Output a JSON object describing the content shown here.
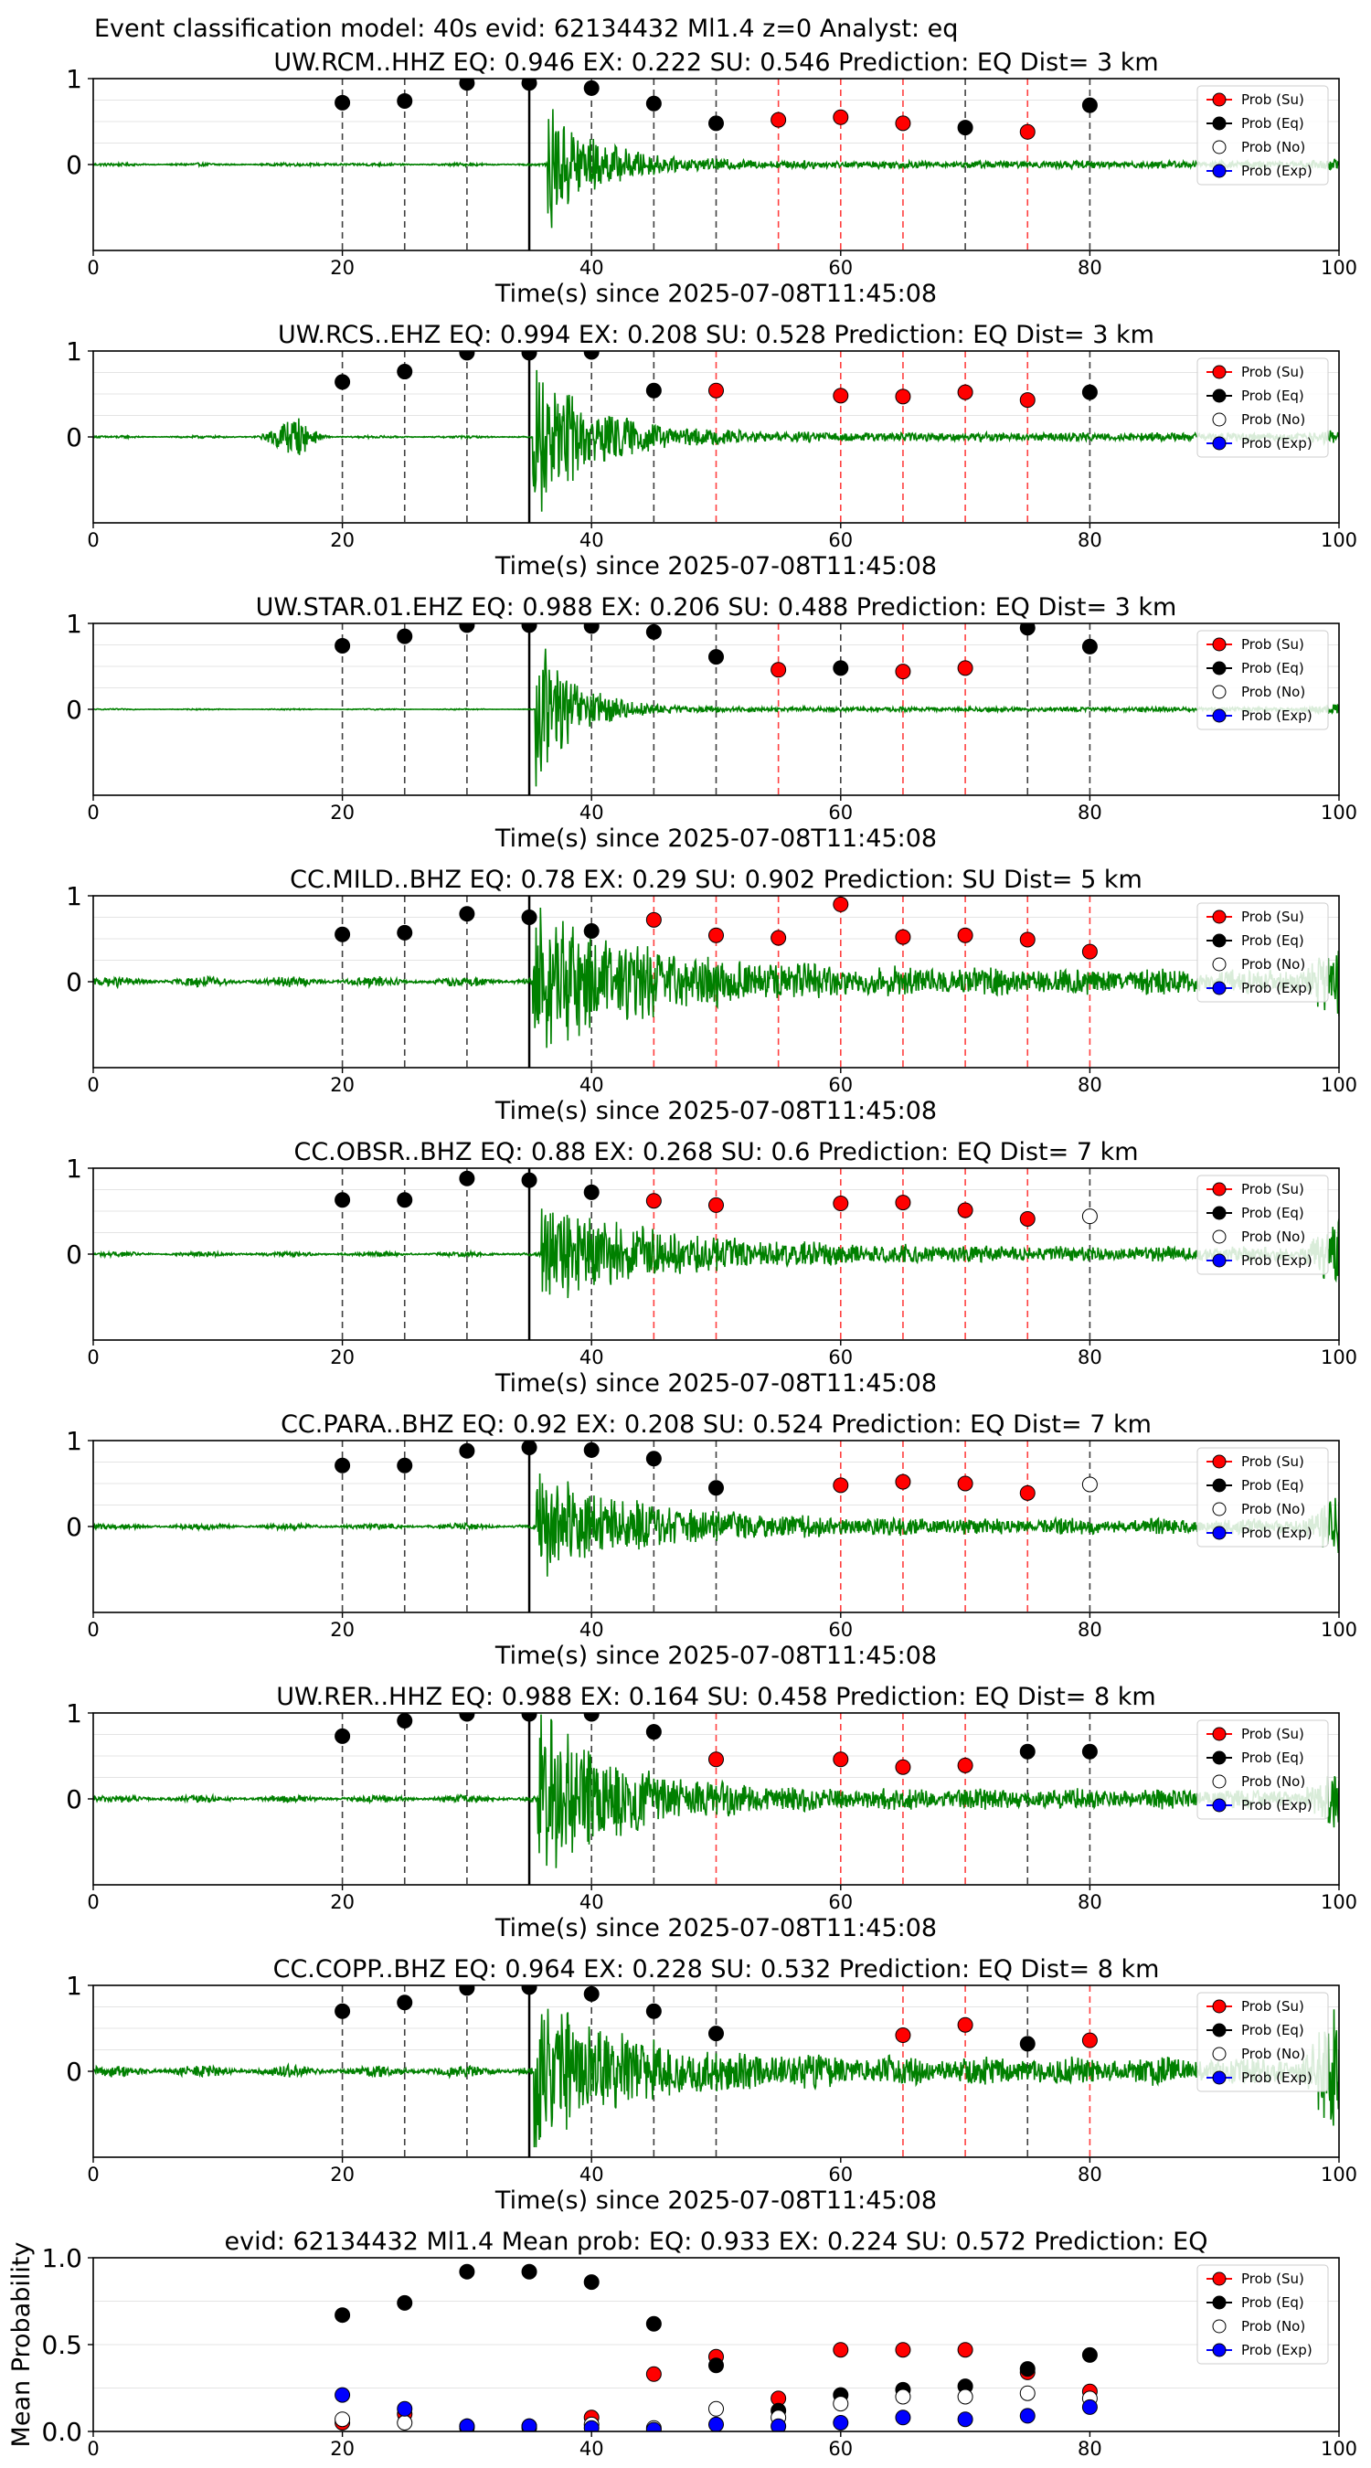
{
  "figure": {
    "title": "Event classification model: 40s evid: 62134432 Ml1.4 z=0 Analyst: eq"
  },
  "legend_labels": [
    "Prob (Su)",
    "Prob (Eq)",
    "Prob (No)",
    "Prob (Exp)"
  ],
  "colors": {
    "su": "#ff0000",
    "eq": "#000000",
    "no": "#ffffff",
    "exp": "#0000ff",
    "trace": "#008000",
    "vline_eq": "#000000",
    "vline_su": "#ff0000"
  },
  "chart_data": [
    {
      "type": "line",
      "title": "UW.RCM..HHZ   EQ: 0.946  EX: 0.222  SU: 0.546   Prediction: EQ    Dist= 3 km",
      "xlabel": "Time(s) since 2025-07-08T11:45:08",
      "xlim": [
        0,
        100
      ],
      "ylim": [
        -1,
        1
      ],
      "xticks": [
        0,
        20,
        40,
        60,
        80,
        100
      ],
      "yticks": [
        0,
        1
      ],
      "pick_time": 35,
      "points": [
        {
          "x": 20,
          "y": 0.72,
          "c": "eq"
        },
        {
          "x": 25,
          "y": 0.74,
          "c": "eq"
        },
        {
          "x": 30,
          "y": 0.95,
          "c": "eq"
        },
        {
          "x": 35,
          "y": 0.95,
          "c": "eq"
        },
        {
          "x": 40,
          "y": 0.89,
          "c": "eq"
        },
        {
          "x": 45,
          "y": 0.71,
          "c": "eq"
        },
        {
          "x": 50,
          "y": 0.48,
          "c": "eq"
        },
        {
          "x": 55,
          "y": 0.52,
          "c": "su"
        },
        {
          "x": 60,
          "y": 0.55,
          "c": "su"
        },
        {
          "x": 65,
          "y": 0.48,
          "c": "su"
        },
        {
          "x": 70,
          "y": 0.43,
          "c": "eq"
        },
        {
          "x": 75,
          "y": 0.38,
          "c": "su"
        },
        {
          "x": 80,
          "y": 0.69,
          "c": "eq"
        }
      ],
      "waveform": {
        "noise": 0.012,
        "pre_time": 19,
        "pre_amp": 0.01,
        "arrival": 36.5,
        "peak_amp": 0.75,
        "decay": 4,
        "coda_amp": 0.03,
        "end_amp": 0.04
      }
    },
    {
      "type": "line",
      "title": "UW.RCS..EHZ   EQ: 0.994  EX: 0.208  SU: 0.528   Prediction: EQ    Dist= 3 km",
      "xlabel": "Time(s) since 2025-07-08T11:45:08",
      "xlim": [
        0,
        100
      ],
      "ylim": [
        -1,
        1
      ],
      "xticks": [
        0,
        20,
        40,
        60,
        80,
        100
      ],
      "yticks": [
        0,
        1
      ],
      "pick_time": 35,
      "points": [
        {
          "x": 20,
          "y": 0.64,
          "c": "eq"
        },
        {
          "x": 25,
          "y": 0.76,
          "c": "eq"
        },
        {
          "x": 30,
          "y": 0.98,
          "c": "eq"
        },
        {
          "x": 35,
          "y": 0.98,
          "c": "eq"
        },
        {
          "x": 40,
          "y": 0.99,
          "c": "eq"
        },
        {
          "x": 45,
          "y": 0.54,
          "c": "eq"
        },
        {
          "x": 50,
          "y": 0.54,
          "c": "su"
        },
        {
          "x": 60,
          "y": 0.48,
          "c": "su"
        },
        {
          "x": 65,
          "y": 0.47,
          "c": "su"
        },
        {
          "x": 70,
          "y": 0.52,
          "c": "su"
        },
        {
          "x": 75,
          "y": 0.43,
          "c": "su"
        },
        {
          "x": 80,
          "y": 0.52,
          "c": "eq"
        }
      ],
      "waveform": {
        "noise": 0.01,
        "pre_time": 16,
        "pre_amp": 0.25,
        "arrival": 35.3,
        "peak_amp": 1.0,
        "decay": 4.5,
        "coda_amp": 0.04,
        "end_amp": 0.04
      }
    },
    {
      "type": "line",
      "title": "UW.STAR.01.EHZ   EQ: 0.988  EX: 0.206  SU: 0.488   Prediction: EQ    Dist= 3 km",
      "xlabel": "Time(s) since 2025-07-08T11:45:08",
      "xlim": [
        0,
        100
      ],
      "ylim": [
        -1,
        1
      ],
      "xticks": [
        0,
        20,
        40,
        60,
        80,
        100
      ],
      "yticks": [
        0,
        1
      ],
      "pick_time": 35,
      "points": [
        {
          "x": 20,
          "y": 0.74,
          "c": "eq"
        },
        {
          "x": 25,
          "y": 0.85,
          "c": "eq"
        },
        {
          "x": 30,
          "y": 0.98,
          "c": "eq"
        },
        {
          "x": 35,
          "y": 0.98,
          "c": "eq"
        },
        {
          "x": 40,
          "y": 0.97,
          "c": "eq"
        },
        {
          "x": 45,
          "y": 0.9,
          "c": "eq"
        },
        {
          "x": 50,
          "y": 0.61,
          "c": "eq"
        },
        {
          "x": 55,
          "y": 0.46,
          "c": "su"
        },
        {
          "x": 60,
          "y": 0.48,
          "c": "eq"
        },
        {
          "x": 65,
          "y": 0.44,
          "c": "su"
        },
        {
          "x": 70,
          "y": 0.48,
          "c": "su"
        },
        {
          "x": 75,
          "y": 0.95,
          "c": "eq"
        },
        {
          "x": 80,
          "y": 0.73,
          "c": "eq"
        }
      ],
      "waveform": {
        "noise": 0.005,
        "pre_time": 0,
        "pre_amp": 0,
        "arrival": 35.5,
        "peak_amp": 1.0,
        "decay": 3,
        "coda_amp": 0.02,
        "end_amp": 0.05
      }
    },
    {
      "type": "line",
      "title": "CC.MILD..BHZ   EQ: 0.78  EX: 0.29  SU: 0.902   Prediction: SU    Dist= 5 km",
      "xlabel": "Time(s) since 2025-07-08T11:45:08",
      "xlim": [
        0,
        100
      ],
      "ylim": [
        -1,
        1
      ],
      "xticks": [
        0,
        20,
        40,
        60,
        80,
        100
      ],
      "yticks": [
        0,
        1
      ],
      "pick_time": 35,
      "points": [
        {
          "x": 20,
          "y": 0.55,
          "c": "eq"
        },
        {
          "x": 25,
          "y": 0.57,
          "c": "eq"
        },
        {
          "x": 30,
          "y": 0.79,
          "c": "eq"
        },
        {
          "x": 35,
          "y": 0.75,
          "c": "eq"
        },
        {
          "x": 40,
          "y": 0.59,
          "c": "eq"
        },
        {
          "x": 45,
          "y": 0.72,
          "c": "su"
        },
        {
          "x": 50,
          "y": 0.54,
          "c": "su"
        },
        {
          "x": 55,
          "y": 0.51,
          "c": "su"
        },
        {
          "x": 60,
          "y": 0.9,
          "c": "su"
        },
        {
          "x": 65,
          "y": 0.52,
          "c": "su"
        },
        {
          "x": 70,
          "y": 0.54,
          "c": "su"
        },
        {
          "x": 75,
          "y": 0.49,
          "c": "su"
        },
        {
          "x": 80,
          "y": 0.35,
          "c": "su"
        }
      ],
      "waveform": {
        "noise": 0.04,
        "pre_time": 0,
        "pre_amp": 0,
        "arrival": 35.3,
        "peak_amp": 0.8,
        "decay": 9,
        "coda_amp": 0.1,
        "end_amp": 0.35
      }
    },
    {
      "type": "line",
      "title": "CC.OBSR..BHZ   EQ: 0.88  EX: 0.268  SU: 0.6   Prediction: EQ    Dist= 7 km",
      "xlabel": "Time(s) since 2025-07-08T11:45:08",
      "xlim": [
        0,
        100
      ],
      "ylim": [
        -1,
        1
      ],
      "xticks": [
        0,
        20,
        40,
        60,
        80,
        100
      ],
      "yticks": [
        0,
        1
      ],
      "pick_time": 35,
      "points": [
        {
          "x": 20,
          "y": 0.63,
          "c": "eq"
        },
        {
          "x": 25,
          "y": 0.63,
          "c": "eq"
        },
        {
          "x": 30,
          "y": 0.88,
          "c": "eq"
        },
        {
          "x": 35,
          "y": 0.86,
          "c": "eq"
        },
        {
          "x": 40,
          "y": 0.72,
          "c": "eq"
        },
        {
          "x": 45,
          "y": 0.62,
          "c": "su"
        },
        {
          "x": 50,
          "y": 0.57,
          "c": "su"
        },
        {
          "x": 60,
          "y": 0.59,
          "c": "su"
        },
        {
          "x": 65,
          "y": 0.6,
          "c": "su"
        },
        {
          "x": 70,
          "y": 0.51,
          "c": "su"
        },
        {
          "x": 75,
          "y": 0.41,
          "c": "su"
        },
        {
          "x": 80,
          "y": 0.44,
          "c": "no"
        }
      ],
      "waveform": {
        "noise": 0.02,
        "pre_time": 0,
        "pre_amp": 0,
        "arrival": 36,
        "peak_amp": 0.55,
        "decay": 10,
        "coda_amp": 0.06,
        "end_amp": 0.35
      }
    },
    {
      "type": "line",
      "title": "CC.PARA..BHZ   EQ: 0.92  EX: 0.208  SU: 0.524   Prediction: EQ    Dist= 7 km",
      "xlabel": "Time(s) since 2025-07-08T11:45:08",
      "xlim": [
        0,
        100
      ],
      "ylim": [
        -1,
        1
      ],
      "xticks": [
        0,
        20,
        40,
        60,
        80,
        100
      ],
      "yticks": [
        0,
        1
      ],
      "pick_time": 35,
      "points": [
        {
          "x": 20,
          "y": 0.71,
          "c": "eq"
        },
        {
          "x": 25,
          "y": 0.71,
          "c": "eq"
        },
        {
          "x": 30,
          "y": 0.88,
          "c": "eq"
        },
        {
          "x": 35,
          "y": 0.92,
          "c": "eq"
        },
        {
          "x": 40,
          "y": 0.89,
          "c": "eq"
        },
        {
          "x": 45,
          "y": 0.79,
          "c": "eq"
        },
        {
          "x": 50,
          "y": 0.45,
          "c": "eq"
        },
        {
          "x": 60,
          "y": 0.48,
          "c": "su"
        },
        {
          "x": 65,
          "y": 0.52,
          "c": "su"
        },
        {
          "x": 70,
          "y": 0.5,
          "c": "su"
        },
        {
          "x": 75,
          "y": 0.39,
          "c": "su"
        },
        {
          "x": 80,
          "y": 0.49,
          "c": "no"
        }
      ],
      "waveform": {
        "noise": 0.025,
        "pre_time": 0,
        "pre_amp": 0,
        "arrival": 35.6,
        "peak_amp": 0.6,
        "decay": 8,
        "coda_amp": 0.06,
        "end_amp": 0.3
      }
    },
    {
      "type": "line",
      "title": "UW.RER..HHZ   EQ: 0.988  EX: 0.164  SU: 0.458   Prediction: EQ    Dist= 8 km",
      "xlabel": "Time(s) since 2025-07-08T11:45:08",
      "xlim": [
        0,
        100
      ],
      "ylim": [
        -1,
        1
      ],
      "xticks": [
        0,
        20,
        40,
        60,
        80,
        100
      ],
      "yticks": [
        0,
        1
      ],
      "pick_time": 35,
      "points": [
        {
          "x": 20,
          "y": 0.73,
          "c": "eq"
        },
        {
          "x": 25,
          "y": 0.91,
          "c": "eq"
        },
        {
          "x": 30,
          "y": 0.99,
          "c": "eq"
        },
        {
          "x": 35,
          "y": 0.99,
          "c": "eq"
        },
        {
          "x": 40,
          "y": 0.99,
          "c": "eq"
        },
        {
          "x": 45,
          "y": 0.78,
          "c": "eq"
        },
        {
          "x": 50,
          "y": 0.46,
          "c": "su"
        },
        {
          "x": 60,
          "y": 0.46,
          "c": "su"
        },
        {
          "x": 65,
          "y": 0.37,
          "c": "su"
        },
        {
          "x": 70,
          "y": 0.39,
          "c": "su"
        },
        {
          "x": 75,
          "y": 0.55,
          "c": "eq"
        },
        {
          "x": 80,
          "y": 0.55,
          "c": "eq"
        }
      ],
      "waveform": {
        "noise": 0.03,
        "pre_time": 0,
        "pre_amp": 0,
        "arrival": 35.7,
        "peak_amp": 1.0,
        "decay": 6,
        "coda_amp": 0.08,
        "end_amp": 0.3
      }
    },
    {
      "type": "line",
      "title": "CC.COPP..BHZ   EQ: 0.964  EX: 0.228  SU: 0.532   Prediction: EQ    Dist= 8 km",
      "xlabel": "Time(s) since 2025-07-08T11:45:08",
      "xlim": [
        0,
        100
      ],
      "ylim": [
        -1,
        1
      ],
      "xticks": [
        0,
        20,
        40,
        60,
        80,
        100
      ],
      "yticks": [
        0,
        1
      ],
      "pick_time": 35,
      "points": [
        {
          "x": 20,
          "y": 0.7,
          "c": "eq"
        },
        {
          "x": 25,
          "y": 0.8,
          "c": "eq"
        },
        {
          "x": 30,
          "y": 0.97,
          "c": "eq"
        },
        {
          "x": 35,
          "y": 0.98,
          "c": "eq"
        },
        {
          "x": 40,
          "y": 0.9,
          "c": "eq"
        },
        {
          "x": 45,
          "y": 0.7,
          "c": "eq"
        },
        {
          "x": 50,
          "y": 0.44,
          "c": "eq"
        },
        {
          "x": 65,
          "y": 0.42,
          "c": "su"
        },
        {
          "x": 70,
          "y": 0.54,
          "c": "su"
        },
        {
          "x": 75,
          "y": 0.32,
          "c": "eq"
        },
        {
          "x": 80,
          "y": 0.36,
          "c": "su"
        }
      ],
      "waveform": {
        "noise": 0.05,
        "pre_time": 0,
        "pre_amp": 0,
        "arrival": 35.4,
        "peak_amp": 0.85,
        "decay": 7,
        "coda_amp": 0.1,
        "end_amp": 0.7
      }
    },
    {
      "type": "scatter",
      "title": "evid: 62134432  Ml1.4   Mean prob:    EQ: 0.933  EX: 0.224  SU: 0.572   Prediction: EQ",
      "ylabel": "Mean Probability",
      "xlim": [
        0,
        100
      ],
      "ylim": [
        0,
        1
      ],
      "xticks": [
        0,
        20,
        40,
        60,
        80,
        100
      ],
      "yticks": [
        0.0,
        0.5,
        1.0
      ],
      "ytick_labels": [
        "0.0",
        "0.5",
        "1.0"
      ],
      "x": [
        20,
        25,
        30,
        35,
        40,
        45,
        50,
        55,
        60,
        65,
        70,
        75,
        80
      ],
      "series": [
        {
          "name": "Prob (Su)",
          "key": "su",
          "values": [
            0.05,
            0.1,
            0.03,
            0.03,
            0.08,
            0.33,
            0.43,
            0.19,
            0.47,
            0.47,
            0.47,
            0.34,
            0.23
          ]
        },
        {
          "name": "Prob (Eq)",
          "key": "eq",
          "values": [
            0.67,
            0.74,
            0.92,
            0.92,
            0.86,
            0.62,
            0.38,
            0.12,
            0.21,
            0.24,
            0.26,
            0.36,
            0.44
          ]
        },
        {
          "name": "Prob (No)",
          "key": "no",
          "values": [
            0.07,
            0.05,
            0.02,
            0.02,
            0.04,
            0.02,
            0.13,
            0.08,
            0.16,
            0.2,
            0.2,
            0.22,
            0.19
          ]
        },
        {
          "name": "Prob (Exp)",
          "key": "exp",
          "values": [
            0.21,
            0.13,
            0.03,
            0.03,
            0.02,
            0.01,
            0.04,
            0.03,
            0.05,
            0.08,
            0.07,
            0.09,
            0.14
          ]
        }
      ]
    }
  ]
}
